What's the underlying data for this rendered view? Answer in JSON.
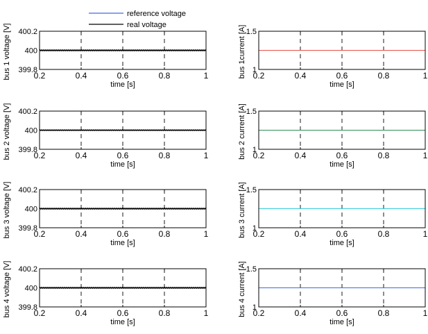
{
  "figure": {
    "legend": {
      "placement": "top, above first column",
      "entries": [
        {
          "label": "reference voltage",
          "color": "#4169E1"
        },
        {
          "label": "real voltage",
          "color": "#000000"
        }
      ]
    }
  },
  "chart_data": [
    {
      "type": "line",
      "ylabel": "bus 1 voltage [V]",
      "xlabel": "time [s]",
      "xlim": [
        0.2,
        1
      ],
      "xticks": [
        "0.2",
        "0.4",
        "0.6",
        "0.8",
        "1"
      ],
      "ylim": [
        399.8,
        400.2
      ],
      "yticks": [
        "399.8",
        "400",
        "400.2"
      ],
      "grid": "vertical dashed at 0.4, 0.6, 0.8",
      "series": [
        {
          "name": "reference voltage",
          "color": "#4169E1",
          "x": [
            0.2,
            1
          ],
          "y": [
            400,
            400
          ]
        },
        {
          "name": "real voltage",
          "color": "#000000",
          "x": [
            0.2,
            1
          ],
          "y": [
            400,
            400
          ],
          "ripple_amplitude": 0.005
        }
      ]
    },
    {
      "type": "line",
      "ylabel": "bus 1current [A]",
      "xlabel": "time [s]",
      "xlim": [
        0.2,
        1
      ],
      "xticks": [
        "0.2",
        "0.4",
        "0.6",
        "0.8",
        "1"
      ],
      "ylim": [
        1,
        1.5
      ],
      "yticks": [
        "1",
        "1.5"
      ],
      "grid": "vertical dashed at 0.4, 0.6, 0.8",
      "series": [
        {
          "color": "#E8504A",
          "x": [
            0.2,
            1
          ],
          "y": [
            1.25,
            1.25
          ]
        }
      ]
    },
    {
      "type": "line",
      "ylabel": "bus 2 voltage [V]",
      "xlabel": "time [s]",
      "xlim": [
        0.2,
        1
      ],
      "xticks": [
        "0.2",
        "0.4",
        "0.6",
        "0.8",
        "1"
      ],
      "ylim": [
        399.8,
        400.2
      ],
      "yticks": [
        "399.8",
        "400",
        "400.2"
      ],
      "grid": "vertical dashed at 0.4, 0.6, 0.8",
      "series": [
        {
          "name": "reference voltage",
          "color": "#4169E1",
          "x": [
            0.2,
            1
          ],
          "y": [
            400,
            400
          ]
        },
        {
          "name": "real voltage",
          "color": "#000000",
          "x": [
            0.2,
            1
          ],
          "y": [
            400,
            400
          ],
          "ripple_amplitude": 0.004
        }
      ]
    },
    {
      "type": "line",
      "ylabel": "bus 2 current [A]",
      "xlabel": "time [s]",
      "xlim": [
        0.2,
        1
      ],
      "xticks": [
        "0.2",
        "0.4",
        "0.6",
        "0.8",
        "1"
      ],
      "ylim": [
        1,
        1.5
      ],
      "yticks": [
        "1",
        "1.5"
      ],
      "grid": "vertical dashed at 0.4, 0.6, 0.8",
      "series": [
        {
          "color": "#2E8B57",
          "x": [
            0.2,
            1
          ],
          "y": [
            1.25,
            1.25
          ]
        }
      ]
    },
    {
      "type": "line",
      "ylabel": "bus 3 voltage [V]",
      "xlabel": "time [s]",
      "xlim": [
        0.2,
        1
      ],
      "xticks": [
        "0.2",
        "0.4",
        "0.6",
        "0.8",
        "1"
      ],
      "ylim": [
        399.8,
        400.2
      ],
      "yticks": [
        "399.8",
        "400",
        "400.2"
      ],
      "grid": "vertical dashed at 0.4, 0.6, 0.8",
      "series": [
        {
          "name": "reference voltage",
          "color": "#4169E1",
          "x": [
            0.2,
            1
          ],
          "y": [
            400,
            400
          ]
        },
        {
          "name": "real voltage",
          "color": "#000000",
          "x": [
            0.2,
            1
          ],
          "y": [
            400,
            400
          ],
          "ripple_amplitude": 0.005
        }
      ]
    },
    {
      "type": "line",
      "ylabel": "bus 3 current [A]",
      "xlabel": "time [s]",
      "xlim": [
        0.2,
        1
      ],
      "xticks": [
        "0.2",
        "0.4",
        "0.6",
        "0.8",
        "1"
      ],
      "ylim": [
        1,
        1.5
      ],
      "yticks": [
        "1",
        "1.5"
      ],
      "grid": "vertical dashed at 0.4, 0.6, 0.8",
      "series": [
        {
          "color": "#33CCDD",
          "x": [
            0.2,
            1
          ],
          "y": [
            1.25,
            1.25
          ]
        }
      ]
    },
    {
      "type": "line",
      "ylabel": "bus 4 voltage [V]",
      "xlabel": "time [s]",
      "xlim": [
        0.2,
        1
      ],
      "xticks": [
        "0.2",
        "0.4",
        "0.6",
        "0.8",
        "1"
      ],
      "ylim": [
        399.8,
        400.2
      ],
      "yticks": [
        "399.8",
        "400",
        "400.2"
      ],
      "grid": "vertical dashed at 0.4, 0.6, 0.8",
      "series": [
        {
          "name": "reference voltage",
          "color": "#4169E1",
          "x": [
            0.2,
            1
          ],
          "y": [
            400,
            400
          ]
        },
        {
          "name": "real voltage",
          "color": "#000000",
          "x": [
            0.2,
            1
          ],
          "y": [
            400,
            400
          ],
          "ripple_amplitude": 0.005
        }
      ]
    },
    {
      "type": "line",
      "ylabel": "bus 4 current [A]",
      "xlabel": "time [s]",
      "xlim": [
        0.2,
        1
      ],
      "xticks": [
        "0.2",
        "0.4",
        "0.6",
        "0.8",
        "1"
      ],
      "ylim": [
        1,
        1.5
      ],
      "yticks": [
        "1",
        "1.5"
      ],
      "grid": "vertical dashed at 0.4, 0.6, 0.8",
      "series": [
        {
          "color": "#4169E1",
          "x": [
            0.2,
            1
          ],
          "y": [
            1.25,
            1.25
          ]
        }
      ]
    }
  ]
}
